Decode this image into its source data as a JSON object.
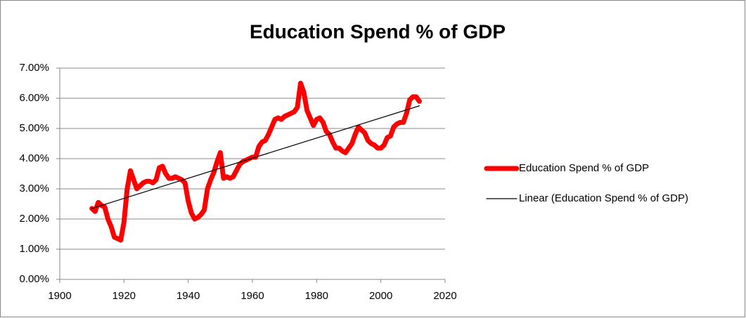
{
  "chart_data": {
    "type": "line",
    "title": "Education Spend % of GDP",
    "xlim": [
      1900,
      2020
    ],
    "xticks": [
      1900,
      1920,
      1940,
      1960,
      1980,
      2000,
      2020
    ],
    "ylim": [
      0,
      7
    ],
    "yticks": [
      {
        "value": 0,
        "label": "0.00%"
      },
      {
        "value": 1,
        "label": "1.00%"
      },
      {
        "value": 2,
        "label": "2.00%"
      },
      {
        "value": 3,
        "label": "3.00%"
      },
      {
        "value": 4,
        "label": "4.00%"
      },
      {
        "value": 5,
        "label": "5.00%"
      },
      {
        "value": 6,
        "label": "6.00%"
      },
      {
        "value": 7,
        "label": "7.00%"
      }
    ],
    "grid": true,
    "legend": "right",
    "series": [
      {
        "name": "Education Spend % of GDP",
        "color": "#ff0000",
        "x": [
          1910,
          1911,
          1912,
          1913,
          1914,
          1915,
          1916,
          1917,
          1918,
          1919,
          1920,
          1921,
          1922,
          1923,
          1924,
          1925,
          1926,
          1927,
          1928,
          1929,
          1930,
          1931,
          1932,
          1933,
          1934,
          1935,
          1936,
          1937,
          1938,
          1939,
          1940,
          1941,
          1942,
          1943,
          1944,
          1945,
          1946,
          1947,
          1948,
          1949,
          1950,
          1951,
          1952,
          1953,
          1954,
          1955,
          1956,
          1957,
          1958,
          1959,
          1960,
          1961,
          1962,
          1963,
          1964,
          1965,
          1966,
          1967,
          1968,
          1969,
          1970,
          1971,
          1972,
          1973,
          1974,
          1975,
          1976,
          1977,
          1978,
          1979,
          1980,
          1981,
          1982,
          1983,
          1984,
          1985,
          1986,
          1987,
          1988,
          1989,
          1990,
          1991,
          1992,
          1993,
          1994,
          1995,
          1996,
          1997,
          1998,
          1999,
          2000,
          2001,
          2002,
          2003,
          2004,
          2005,
          2006,
          2007,
          2008,
          2009,
          2010,
          2011,
          2012
        ],
        "values": [
          2.35,
          2.25,
          2.55,
          2.45,
          2.4,
          2.0,
          1.75,
          1.4,
          1.35,
          1.3,
          1.9,
          3.0,
          3.6,
          3.3,
          3.0,
          3.1,
          3.2,
          3.25,
          3.25,
          3.2,
          3.3,
          3.7,
          3.75,
          3.5,
          3.35,
          3.35,
          3.4,
          3.35,
          3.3,
          3.2,
          2.6,
          2.2,
          2.0,
          2.05,
          2.15,
          2.3,
          3.0,
          3.3,
          3.55,
          3.9,
          4.2,
          3.35,
          3.4,
          3.35,
          3.4,
          3.6,
          3.8,
          3.9,
          3.95,
          4.0,
          4.05,
          4.05,
          4.4,
          4.55,
          4.6,
          4.8,
          5.05,
          5.3,
          5.35,
          5.3,
          5.4,
          5.45,
          5.5,
          5.55,
          5.7,
          6.5,
          6.2,
          5.6,
          5.35,
          5.1,
          5.3,
          5.35,
          5.2,
          4.9,
          4.8,
          4.55,
          4.35,
          4.35,
          4.25,
          4.2,
          4.35,
          4.5,
          4.8,
          5.05,
          4.95,
          4.85,
          4.6,
          4.5,
          4.45,
          4.35,
          4.35,
          4.45,
          4.7,
          4.75,
          5.05,
          5.15,
          5.2,
          5.2,
          5.5,
          5.95,
          6.05,
          6.05,
          5.9
        ]
      },
      {
        "name": "Linear (Education Spend % of GDP)",
        "color": "#000000",
        "x": [
          1910,
          2012
        ],
        "values": [
          2.35,
          5.75
        ]
      }
    ]
  }
}
